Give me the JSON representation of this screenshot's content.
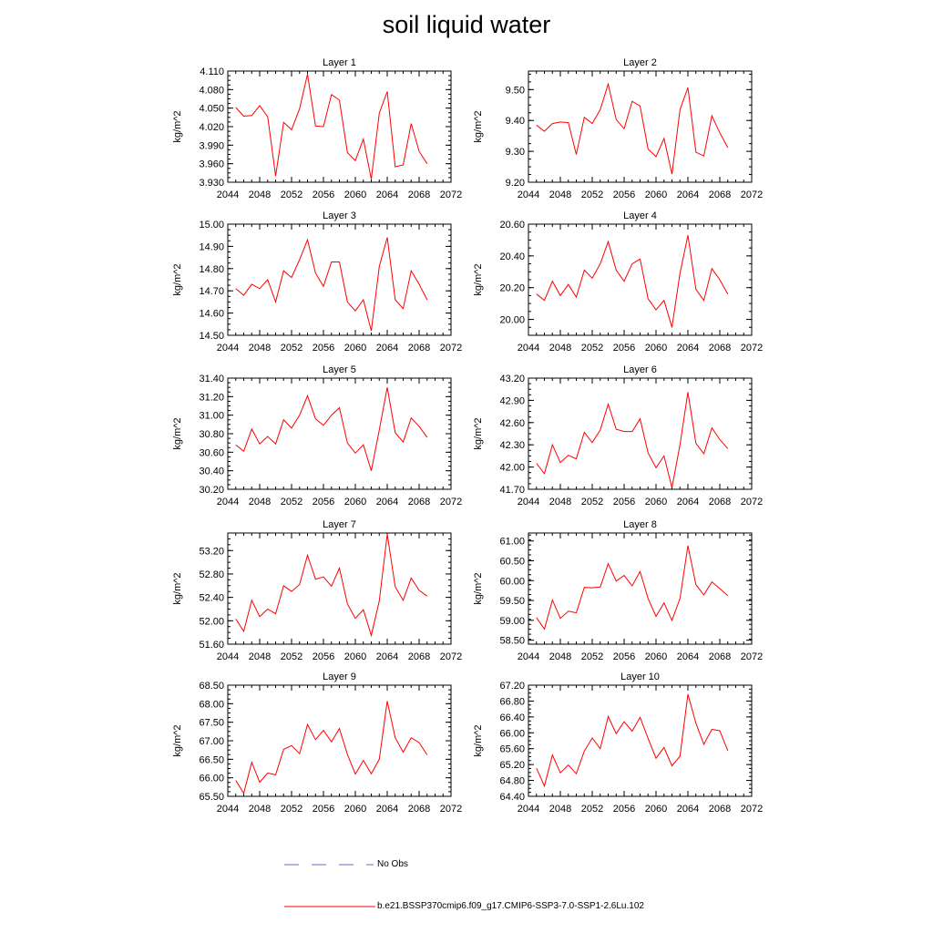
{
  "figure_title": "soil liquid water",
  "legend": {
    "obs_label": "No Obs",
    "model_label": "b.e21.BSSP370cmip6.f09_g17.CMIP6-SSP3-7.0-SSP1-2.6Lu.102",
    "obs_color": "#6a6ac8",
    "model_color": "#ff0000"
  },
  "chart_data": [
    {
      "type": "line",
      "title": "Layer 1",
      "ylabel": "kg/m^2",
      "xlim": [
        2044,
        2072
      ],
      "xticks": [
        "2044",
        "2048",
        "2052",
        "2056",
        "2060",
        "2064",
        "2068",
        "2072"
      ],
      "ylim": [
        3.93,
        4.11
      ],
      "yticks": [
        "3.930",
        "3.960",
        "3.990",
        "4.020",
        "4.050",
        "4.080",
        "4.110"
      ],
      "x": [
        2045,
        2046,
        2047,
        2048,
        2049,
        2050,
        2051,
        2052,
        2053,
        2054,
        2055,
        2056,
        2057,
        2058,
        2059,
        2060,
        2061,
        2062,
        2063,
        2064,
        2065,
        2066,
        2067,
        2068,
        2069
      ],
      "series": [
        {
          "color": "#ff0000",
          "values": [
            4.051,
            4.037,
            4.038,
            4.054,
            4.036,
            3.94,
            4.027,
            4.015,
            4.049,
            4.105,
            4.021,
            4.02,
            4.072,
            4.063,
            3.978,
            3.965,
            4.0,
            3.935,
            4.042,
            4.077,
            3.955,
            3.958,
            4.025,
            3.98,
            3.96
          ]
        }
      ]
    },
    {
      "type": "line",
      "title": "Layer 2",
      "ylabel": "kg/m^2",
      "xlim": [
        2044,
        2072
      ],
      "xticks": [
        "2044",
        "2048",
        "2052",
        "2056",
        "2060",
        "2064",
        "2068",
        "2072"
      ],
      "ylim": [
        9.2,
        9.56
      ],
      "yticks": [
        "9.20",
        "9.30",
        "9.40",
        "9.50"
      ],
      "x": [
        2045,
        2046,
        2047,
        2048,
        2049,
        2050,
        2051,
        2052,
        2053,
        2054,
        2055,
        2056,
        2057,
        2058,
        2059,
        2060,
        2061,
        2062,
        2063,
        2064,
        2065,
        2066,
        2067,
        2068,
        2069
      ],
      "series": [
        {
          "color": "#ff0000",
          "values": [
            9.385,
            9.365,
            9.39,
            9.395,
            9.393,
            9.29,
            9.41,
            9.39,
            9.435,
            9.518,
            9.403,
            9.373,
            9.462,
            9.447,
            9.307,
            9.283,
            9.342,
            9.226,
            9.435,
            9.507,
            9.297,
            9.285,
            9.415,
            9.36,
            9.312
          ]
        }
      ]
    },
    {
      "type": "line",
      "title": "Layer 3",
      "ylabel": "kg/m^2",
      "xlim": [
        2044,
        2072
      ],
      "xticks": [
        "2044",
        "2048",
        "2052",
        "2056",
        "2060",
        "2064",
        "2068",
        "2072"
      ],
      "ylim": [
        14.5,
        15.0
      ],
      "yticks": [
        "14.50",
        "14.60",
        "14.70",
        "14.80",
        "14.90",
        "15.00"
      ],
      "x": [
        2045,
        2046,
        2047,
        2048,
        2049,
        2050,
        2051,
        2052,
        2053,
        2054,
        2055,
        2056,
        2057,
        2058,
        2059,
        2060,
        2061,
        2062,
        2063,
        2064,
        2065,
        2066,
        2067,
        2068,
        2069
      ],
      "series": [
        {
          "color": "#ff0000",
          "values": [
            14.71,
            14.68,
            14.73,
            14.71,
            14.75,
            14.65,
            14.79,
            14.76,
            14.84,
            14.93,
            14.78,
            14.72,
            14.83,
            14.83,
            14.65,
            14.61,
            14.66,
            14.52,
            14.81,
            14.94,
            14.66,
            14.62,
            14.79,
            14.73,
            14.66
          ]
        }
      ]
    },
    {
      "type": "line",
      "title": "Layer 4",
      "ylabel": "kg/m^2",
      "xlim": [
        2044,
        2072
      ],
      "xticks": [
        "2044",
        "2048",
        "2052",
        "2056",
        "2060",
        "2064",
        "2068",
        "2072"
      ],
      "ylim": [
        19.9,
        20.6
      ],
      "yticks": [
        "20.00",
        "20.20",
        "20.40",
        "20.60"
      ],
      "x": [
        2045,
        2046,
        2047,
        2048,
        2049,
        2050,
        2051,
        2052,
        2053,
        2054,
        2055,
        2056,
        2057,
        2058,
        2059,
        2060,
        2061,
        2062,
        2063,
        2064,
        2065,
        2066,
        2067,
        2068,
        2069
      ],
      "series": [
        {
          "color": "#ff0000",
          "values": [
            20.16,
            20.12,
            20.24,
            20.15,
            20.22,
            20.14,
            20.31,
            20.26,
            20.35,
            20.49,
            20.31,
            20.24,
            20.35,
            20.38,
            20.13,
            20.06,
            20.12,
            19.95,
            20.29,
            20.53,
            20.19,
            20.12,
            20.32,
            20.25,
            20.16
          ]
        }
      ]
    },
    {
      "type": "line",
      "title": "Layer 5",
      "ylabel": "kg/m^2",
      "xlim": [
        2044,
        2072
      ],
      "xticks": [
        "2044",
        "2048",
        "2052",
        "2056",
        "2060",
        "2064",
        "2068",
        "2072"
      ],
      "ylim": [
        30.2,
        31.4
      ],
      "yticks": [
        "30.20",
        "30.40",
        "30.60",
        "30.80",
        "31.00",
        "31.20",
        "31.40"
      ],
      "x": [
        2045,
        2046,
        2047,
        2048,
        2049,
        2050,
        2051,
        2052,
        2053,
        2054,
        2055,
        2056,
        2057,
        2058,
        2059,
        2060,
        2061,
        2062,
        2063,
        2064,
        2065,
        2066,
        2067,
        2068,
        2069
      ],
      "series": [
        {
          "color": "#ff0000",
          "values": [
            30.68,
            30.61,
            30.85,
            30.69,
            30.77,
            30.69,
            30.95,
            30.86,
            31.0,
            31.21,
            30.96,
            30.89,
            31.0,
            31.08,
            30.7,
            30.59,
            30.68,
            30.4,
            30.84,
            31.3,
            30.81,
            30.71,
            30.97,
            30.88,
            30.76
          ]
        }
      ]
    },
    {
      "type": "line",
      "title": "Layer 6",
      "ylabel": "kg/m^2",
      "xlim": [
        2044,
        2072
      ],
      "xticks": [
        "2044",
        "2048",
        "2052",
        "2056",
        "2060",
        "2064",
        "2068",
        "2072"
      ],
      "ylim": [
        41.7,
        43.2
      ],
      "yticks": [
        "41.70",
        "42.00",
        "42.30",
        "42.60",
        "42.90",
        "43.20"
      ],
      "x": [
        2045,
        2046,
        2047,
        2048,
        2049,
        2050,
        2051,
        2052,
        2053,
        2054,
        2055,
        2056,
        2057,
        2058,
        2059,
        2060,
        2061,
        2062,
        2063,
        2064,
        2065,
        2066,
        2067,
        2068,
        2069
      ],
      "series": [
        {
          "color": "#ff0000",
          "values": [
            42.05,
            41.91,
            42.3,
            42.06,
            42.16,
            42.11,
            42.47,
            42.33,
            42.5,
            42.85,
            42.51,
            42.48,
            42.48,
            42.65,
            42.19,
            41.99,
            42.15,
            41.72,
            42.3,
            43.01,
            42.32,
            42.18,
            42.53,
            42.37,
            42.25
          ]
        }
      ]
    },
    {
      "type": "line",
      "title": "Layer 7",
      "ylabel": "kg/m^2",
      "xlim": [
        2044,
        2072
      ],
      "xticks": [
        "2044",
        "2048",
        "2052",
        "2056",
        "2060",
        "2064",
        "2068",
        "2072"
      ],
      "ylim": [
        51.6,
        53.5
      ],
      "yticks": [
        "51.60",
        "52.00",
        "52.40",
        "52.80",
        "53.20"
      ],
      "x": [
        2045,
        2046,
        2047,
        2048,
        2049,
        2050,
        2051,
        2052,
        2053,
        2054,
        2055,
        2056,
        2057,
        2058,
        2059,
        2060,
        2061,
        2062,
        2063,
        2064,
        2065,
        2066,
        2067,
        2068,
        2069
      ],
      "series": [
        {
          "color": "#ff0000",
          "values": [
            52.03,
            51.82,
            52.35,
            52.07,
            52.2,
            52.12,
            52.6,
            52.5,
            52.62,
            53.12,
            52.71,
            52.75,
            52.59,
            52.9,
            52.29,
            52.04,
            52.19,
            51.75,
            52.34,
            53.48,
            52.58,
            52.35,
            52.73,
            52.52,
            52.42
          ]
        }
      ]
    },
    {
      "type": "line",
      "title": "Layer 8",
      "ylabel": "kg/m^2",
      "xlim": [
        2044,
        2072
      ],
      "xticks": [
        "2044",
        "2048",
        "2052",
        "2056",
        "2060",
        "2064",
        "2068",
        "2072"
      ],
      "ylim": [
        58.4,
        61.2
      ],
      "yticks": [
        "58.50",
        "59.00",
        "59.50",
        "60.00",
        "60.50",
        "61.00"
      ],
      "x": [
        2045,
        2046,
        2047,
        2048,
        2049,
        2050,
        2051,
        2052,
        2053,
        2054,
        2055,
        2056,
        2057,
        2058,
        2059,
        2060,
        2061,
        2062,
        2063,
        2064,
        2065,
        2066,
        2067,
        2068,
        2069
      ],
      "series": [
        {
          "color": "#ff0000",
          "values": [
            59.07,
            58.78,
            59.51,
            59.05,
            59.23,
            59.19,
            59.83,
            59.82,
            59.84,
            60.43,
            59.99,
            60.13,
            59.87,
            60.23,
            59.55,
            59.1,
            59.44,
            59.0,
            59.55,
            60.88,
            59.9,
            59.64,
            59.97,
            59.8,
            59.62
          ]
        }
      ]
    },
    {
      "type": "line",
      "title": "Layer 9",
      "ylabel": "kg/m^2",
      "xlim": [
        2044,
        2072
      ],
      "xticks": [
        "2044",
        "2048",
        "2052",
        "2056",
        "2060",
        "2064",
        "2068",
        "2072"
      ],
      "ylim": [
        65.5,
        68.5
      ],
      "yticks": [
        "65.50",
        "66.00",
        "66.50",
        "67.00",
        "67.50",
        "68.00",
        "68.50"
      ],
      "x": [
        2045,
        2046,
        2047,
        2048,
        2049,
        2050,
        2051,
        2052,
        2053,
        2054,
        2055,
        2056,
        2057,
        2058,
        2059,
        2060,
        2061,
        2062,
        2063,
        2064,
        2065,
        2066,
        2067,
        2068,
        2069
      ],
      "series": [
        {
          "color": "#ff0000",
          "values": [
            65.93,
            65.58,
            66.42,
            65.88,
            66.13,
            66.08,
            66.77,
            66.87,
            66.65,
            67.44,
            67.03,
            67.28,
            66.97,
            67.33,
            66.63,
            66.1,
            66.47,
            66.11,
            66.5,
            68.07,
            67.08,
            66.69,
            67.08,
            66.95,
            66.62
          ]
        }
      ]
    },
    {
      "type": "line",
      "title": "Layer 10",
      "ylabel": "kg/m^2",
      "xlim": [
        2044,
        2072
      ],
      "xticks": [
        "2044",
        "2048",
        "2052",
        "2056",
        "2060",
        "2064",
        "2068",
        "2072"
      ],
      "ylim": [
        64.4,
        67.2
      ],
      "yticks": [
        "64.40",
        "64.80",
        "65.20",
        "65.60",
        "66.00",
        "66.40",
        "66.80",
        "67.20"
      ],
      "x": [
        2045,
        2046,
        2047,
        2048,
        2049,
        2050,
        2051,
        2052,
        2053,
        2054,
        2055,
        2056,
        2057,
        2058,
        2059,
        2060,
        2061,
        2062,
        2063,
        2064,
        2065,
        2066,
        2067,
        2068,
        2069
      ],
      "series": [
        {
          "color": "#ff0000",
          "values": [
            65.11,
            64.66,
            65.44,
            64.99,
            65.19,
            64.97,
            65.54,
            65.87,
            65.6,
            66.41,
            65.98,
            66.28,
            66.04,
            66.39,
            65.86,
            65.36,
            65.63,
            65.17,
            65.41,
            66.97,
            66.24,
            65.71,
            66.09,
            66.05,
            65.55
          ]
        }
      ]
    }
  ]
}
